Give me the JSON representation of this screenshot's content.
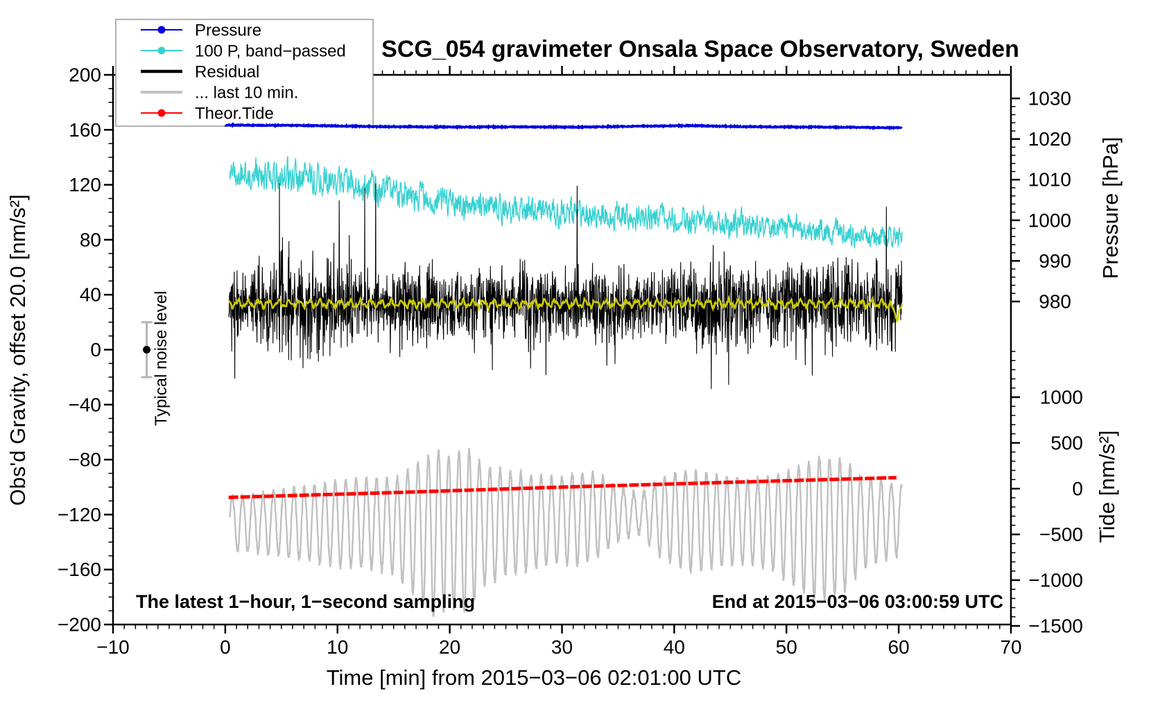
{
  "title": "SCG_054 gravimeter Onsala Space Observatory, Sweden",
  "annotations": {
    "sampling_note": "The latest 1−hour, 1−second sampling",
    "end_time_note": "End at 2015−03−06 03:00:59 UTC"
  },
  "noise_marker": {
    "label": "Typical noise level",
    "t_min": -7,
    "value": 0,
    "error_bar": 20,
    "bar_color": "#b5b5b5",
    "dot_color": "#000000"
  },
  "legend": {
    "items": [
      {
        "label": "Pressure",
        "series": "pressure",
        "marker": "dot",
        "line_width": 2
      },
      {
        "label": "100 P, band−passed",
        "series": "pressure_bp",
        "marker": "dot",
        "line_width": 2
      },
      {
        "label": "Residual",
        "series": "residual",
        "marker": "none",
        "line_width": 4.5
      },
      {
        "label": "... last 10 min.",
        "series": "last10",
        "marker": "none",
        "line_width": 4
      },
      {
        "label": "Theor.Tide",
        "series": "tide",
        "marker": "dot",
        "line_width": 2
      }
    ]
  },
  "chart_data": {
    "type": "line",
    "title": "SCG_054 gravimeter Onsala Space Observatory, Sweden",
    "x_axis": {
      "label": "Time [min] from 2015−03−06 02:01:00 UTC",
      "min": -10,
      "max": 70,
      "major_step": 10,
      "minor_step": 1,
      "ticks": [
        "−10",
        "0",
        "10",
        "20",
        "30",
        "40",
        "50",
        "60",
        "70"
      ]
    },
    "y_axis_left": {
      "label": "Obs'd Gravity, offset 20.0 [nm/s²]",
      "min": -200,
      "max": 200,
      "major_step": 40,
      "minor_step": 10,
      "ticks": [
        "−200",
        "−160",
        "−120",
        "−80",
        "−40",
        "0",
        "40",
        "80",
        "120",
        "160",
        "200"
      ]
    },
    "y_axis_right_top": {
      "label": "Pressure [hPa]",
      "min": 980,
      "max": 1030,
      "major_step": 10,
      "minor_step": 2,
      "ticks": [
        "980",
        "990",
        "1000",
        "1010",
        "1020",
        "1030"
      ]
    },
    "y_axis_right_bottom": {
      "label": "Tide [nm/s²]",
      "min": -1500,
      "max": 1000,
      "major_step": 500,
      "minor_step": 100,
      "ticks": [
        "−1500",
        "−1000",
        "−500",
        "0",
        "500",
        "1000"
      ]
    },
    "series": [
      {
        "id": "pressure",
        "name": "Pressure",
        "color": "#0000dd",
        "axis": "pressure",
        "width": 3.5,
        "t_start": 0,
        "t_end": 60.3,
        "noise": 0.12,
        "keypoints": [
          [
            0,
            1023.45
          ],
          [
            8,
            1023.3
          ],
          [
            14,
            1023.05
          ],
          [
            20,
            1022.95
          ],
          [
            26,
            1023.0
          ],
          [
            32,
            1022.95
          ],
          [
            38,
            1023.2
          ],
          [
            42,
            1023.3
          ],
          [
            46,
            1023.05
          ],
          [
            52,
            1022.95
          ],
          [
            56,
            1022.9
          ],
          [
            60.3,
            1022.75
          ]
        ]
      },
      {
        "id": "pressure_bp",
        "name": "100 P, band−passed",
        "color": "#38d1d1",
        "axis": "gravity",
        "width": 1.4,
        "t_start": 0.4,
        "t_end": 60.3,
        "center": [
          [
            0.4,
            126
          ],
          [
            4,
            127
          ],
          [
            8,
            124
          ],
          [
            12,
            119
          ],
          [
            14,
            117
          ],
          [
            17,
            112
          ],
          [
            20,
            107
          ],
          [
            24,
            104
          ],
          [
            28,
            101
          ],
          [
            32,
            99
          ],
          [
            36,
            97
          ],
          [
            40,
            95
          ],
          [
            44,
            93
          ],
          [
            48,
            89
          ],
          [
            52,
            87
          ],
          [
            55,
            84
          ],
          [
            58,
            82
          ],
          [
            60.3,
            81
          ]
        ],
        "amp": [
          [
            0.4,
            8
          ],
          [
            6,
            10
          ],
          [
            12,
            9
          ],
          [
            18,
            9
          ],
          [
            24,
            8
          ],
          [
            30,
            7.5
          ],
          [
            36,
            8
          ],
          [
            42,
            8
          ],
          [
            48,
            7
          ],
          [
            54,
            7
          ],
          [
            60.3,
            7
          ]
        ]
      },
      {
        "id": "residual",
        "name": "Residual",
        "color": "#000000",
        "axis": "gravity",
        "width": 1.1,
        "t_start": 0.3,
        "t_end": 60.3,
        "center_value": 33,
        "amp": [
          [
            0.3,
            17
          ],
          [
            3,
            21
          ],
          [
            5,
            28
          ],
          [
            7,
            30
          ],
          [
            9,
            25
          ],
          [
            12,
            19
          ],
          [
            15,
            19
          ],
          [
            17,
            24
          ],
          [
            19,
            21
          ],
          [
            22,
            19
          ],
          [
            25,
            20
          ],
          [
            27,
            22
          ],
          [
            30,
            19
          ],
          [
            33,
            21
          ],
          [
            36,
            19
          ],
          [
            39,
            20
          ],
          [
            42,
            23
          ],
          [
            44,
            26
          ],
          [
            46,
            24
          ],
          [
            48,
            21
          ],
          [
            50,
            25
          ],
          [
            52,
            23
          ],
          [
            54,
            24
          ],
          [
            56,
            23
          ],
          [
            58,
            25
          ],
          [
            60.3,
            26
          ]
        ],
        "spike_prob": 0.0045,
        "spike_min": 55,
        "spike_max": 100,
        "clip": [
          -57,
          121
        ]
      },
      {
        "id": "residual_smooth",
        "name": "Residual smoothed",
        "color": "#c9c900",
        "axis": "gravity",
        "width": 2.6,
        "t_start": 0.3,
        "t_end": 60.3,
        "center_value": 33.5,
        "wiggle": 2.1,
        "end_dip": {
          "t": 59.8,
          "depth": 9,
          "width": 0.25
        }
      },
      {
        "id": "last10",
        "name": "... last 10 min.",
        "color": "#c0c0c0",
        "axis": "gravity",
        "width": 2.4,
        "t_start": 0.4,
        "t_end": 60.3,
        "period_min": 0.92,
        "neg_bias": 1.3,
        "center": [
          [
            0.4,
            -124
          ],
          [
            6,
            -123
          ],
          [
            12,
            -122
          ],
          [
            18,
            -126
          ],
          [
            24,
            -122
          ],
          [
            30,
            -120
          ],
          [
            34,
            -116
          ],
          [
            37,
            -118
          ],
          [
            42,
            -120
          ],
          [
            48,
            -122
          ],
          [
            52,
            -124
          ],
          [
            56,
            -122
          ],
          [
            60.3,
            -120
          ]
        ],
        "amp": [
          [
            0.4,
            17
          ],
          [
            4,
            19
          ],
          [
            7,
            23
          ],
          [
            10,
            27
          ],
          [
            13,
            28
          ],
          [
            15,
            30
          ],
          [
            17,
            42
          ],
          [
            18.5,
            52
          ],
          [
            20,
            48
          ],
          [
            21.5,
            52
          ],
          [
            23,
            38
          ],
          [
            25,
            33
          ],
          [
            27,
            30
          ],
          [
            29,
            27
          ],
          [
            31,
            29
          ],
          [
            33,
            27
          ],
          [
            35,
            17
          ],
          [
            37,
            12
          ],
          [
            39,
            26
          ],
          [
            41,
            32
          ],
          [
            43,
            30
          ],
          [
            45,
            27
          ],
          [
            47,
            26
          ],
          [
            49,
            30
          ],
          [
            51,
            38
          ],
          [
            53,
            46
          ],
          [
            55,
            42
          ],
          [
            57,
            28
          ],
          [
            59,
            24
          ],
          [
            60.3,
            22
          ]
        ]
      },
      {
        "id": "tide",
        "name": "Theor.Tide",
        "color": "#ff0000",
        "axis": "gravity",
        "width": 5,
        "t_start": 0.3,
        "t_end": 60.2,
        "keypoints": [
          [
            0.3,
            -107.5
          ],
          [
            15,
            -104
          ],
          [
            30,
            -100
          ],
          [
            45,
            -96.5
          ],
          [
            60.2,
            -93
          ]
        ]
      }
    ]
  }
}
